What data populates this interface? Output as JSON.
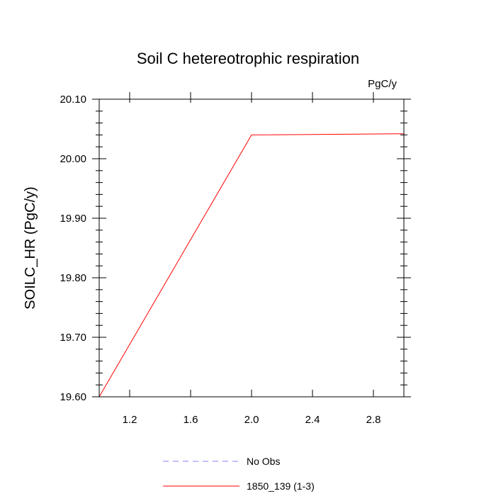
{
  "chart_data": {
    "type": "line",
    "title": "Soil C hetereotrophic respiration",
    "units_label": "PgC/y",
    "ylabel": "SOILC_HR  (PgC/y)",
    "xlabel": "",
    "xlim": [
      1.0,
      3.0
    ],
    "ylim": [
      19.6,
      20.1
    ],
    "x_ticks": [
      1.2,
      1.6,
      2.0,
      2.4,
      2.8
    ],
    "x_tick_labels": [
      "1.2",
      "1.6",
      "2.0",
      "2.4",
      "2.8"
    ],
    "x_minor_step": 0.4,
    "y_ticks": [
      19.6,
      19.7,
      19.8,
      19.9,
      20.0,
      20.1
    ],
    "y_tick_labels": [
      "19.60",
      "19.70",
      "19.80",
      "19.90",
      "20.00",
      "20.10"
    ],
    "y_minor_step": 0.02,
    "series": [
      {
        "name": "1850_139 (1-3)",
        "color": "#ff0000",
        "dash": "solid",
        "x": [
          1.0,
          2.0,
          3.0
        ],
        "values": [
          19.6,
          20.04,
          20.042
        ]
      }
    ],
    "legend": {
      "placement": "bottom",
      "entries": [
        {
          "label": "No Obs",
          "color": "#8080ff",
          "dash": "dashed"
        },
        {
          "label": "1850_139 (1-3)",
          "color": "#ff0000",
          "dash": "solid"
        }
      ]
    }
  }
}
